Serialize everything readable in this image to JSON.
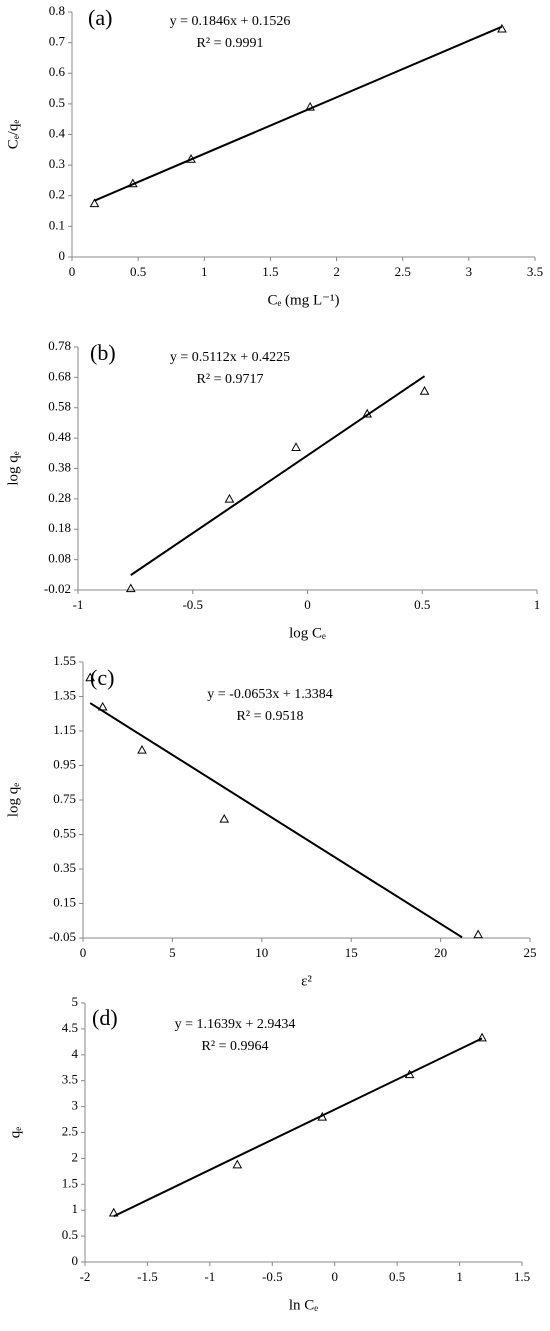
{
  "chart_data": [
    {
      "type": "scatter",
      "label": "(a)",
      "equation": "y = 0.1846x + 0.1526",
      "r2": "R² = 0.9991",
      "xlabel": "Cₑ (mg L⁻¹)",
      "ylabel": "Cₑ/qₑ",
      "color": "#000000",
      "xlim": [
        0,
        3.5
      ],
      "xticks": [
        0,
        0.5,
        1,
        1.5,
        2,
        2.5,
        3,
        3.5
      ],
      "ylim": [
        0,
        0.8
      ],
      "yticks": [
        0,
        0.1,
        0.2,
        0.3,
        0.4,
        0.5,
        0.6,
        0.7,
        0.8
      ],
      "x": [
        0.17,
        0.46,
        0.9,
        1.8,
        3.25
      ],
      "values": [
        0.175,
        0.24,
        0.32,
        0.49,
        0.745
      ],
      "fit": {
        "x": [
          0.17,
          3.25
        ],
        "values": [
          0.184,
          0.752
        ]
      }
    },
    {
      "type": "scatter",
      "label": "(b)",
      "equation": "y = 0.5112x + 0.4225",
      "r2": "R² = 0.9717",
      "xlabel": "log Cₑ",
      "ylabel": "log qₑ",
      "color": "#000000",
      "xlim": [
        -1,
        1
      ],
      "xticks": [
        -1,
        -0.5,
        0,
        0.5,
        1
      ],
      "ylim": [
        -0.02,
        0.78
      ],
      "yticks": [
        -0.02,
        0.08,
        0.18,
        0.28,
        0.38,
        0.48,
        0.58,
        0.68,
        0.78
      ],
      "x": [
        -0.77,
        -0.34,
        -0.05,
        0.26,
        0.51
      ],
      "values": [
        -0.015,
        0.28,
        0.45,
        0.56,
        0.635
      ],
      "fit": {
        "x": [
          -0.77,
          0.51
        ],
        "values": [
          0.029,
          0.684
        ]
      }
    },
    {
      "type": "scatter",
      "label": "(c)",
      "equation": "y = -0.0653x + 1.3384",
      "r2": "R² = 0.9518",
      "xlabel": "ε²",
      "ylabel": "log qₑ",
      "color": "#000000",
      "xlim": [
        0,
        25
      ],
      "xticks": [
        0,
        5,
        10,
        15,
        20,
        25
      ],
      "ylim": [
        -0.05,
        1.55
      ],
      "yticks": [
        -0.05,
        0.15,
        0.35,
        0.55,
        0.75,
        0.95,
        1.15,
        1.35,
        1.55
      ],
      "x": [
        0.4,
        1.1,
        3.3,
        7.9,
        22.1
      ],
      "values": [
        1.46,
        1.29,
        1.04,
        0.64,
        -0.03
      ],
      "fit": {
        "x": [
          0.4,
          21.2
        ],
        "values": [
          1.312,
          -0.046
        ]
      }
    },
    {
      "type": "scatter",
      "label": "(d)",
      "equation": "y = 1.1639x + 2.9434",
      "r2": "R² = 0.9964",
      "xlabel": "ln Cₑ",
      "ylabel": "qₑ",
      "color": "#000000",
      "xlim": [
        -2,
        1.5
      ],
      "xticks": [
        -2,
        -1.5,
        -1,
        -0.5,
        0,
        0.5,
        1,
        1.5
      ],
      "ylim": [
        0,
        5
      ],
      "yticks": [
        0,
        0.5,
        1,
        1.5,
        2,
        2.5,
        3,
        3.5,
        4,
        4.5,
        5
      ],
      "x": [
        -1.77,
        -0.78,
        -0.1,
        0.6,
        1.18
      ],
      "values": [
        0.95,
        1.88,
        2.8,
        3.62,
        4.33
      ],
      "fit": {
        "x": [
          -1.77,
          1.18
        ],
        "values": [
          0.883,
          4.317
        ]
      }
    }
  ]
}
